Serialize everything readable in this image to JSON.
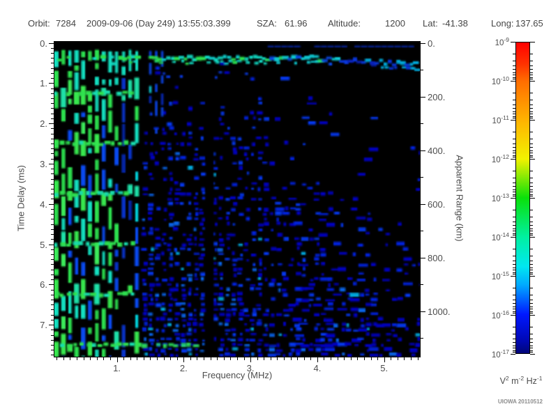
{
  "header": {
    "items": [
      {
        "key": "orbit",
        "label": "Orbit:",
        "value": "7284"
      },
      {
        "key": "datetime",
        "label": "",
        "value": "2009-09-06 (Day 249) 13:55:03.399"
      },
      {
        "key": "sza",
        "label": "SZA:",
        "value": "61.96"
      },
      {
        "key": "altitude",
        "label": "Altitude:",
        "value": "1200"
      },
      {
        "key": "lat",
        "label": "Lat:",
        "value": "-41.38"
      },
      {
        "key": "long",
        "label": "Long:",
        "value": "137.65"
      }
    ]
  },
  "chart_data": {
    "type": "heatmap",
    "description": "Radar sounder ionogram: echo spectral density versus sounding frequency and time delay, black background with blue-cyan-green echo traces",
    "x_axis": {
      "label": "Frequency (MHz)",
      "tick_labels": [
        "1.",
        "2.",
        "3.",
        "4.",
        "5."
      ],
      "tick_values": [
        1,
        2,
        3,
        4,
        5
      ],
      "minor_step_mhz": 0.1,
      "range": [
        0.07,
        5.53
      ]
    },
    "y_axis_left": {
      "label": "Time Delay (ms)",
      "tick_labels": [
        "0.",
        "1.",
        "2.",
        "3.",
        "4.",
        "5.",
        "6.",
        "7."
      ],
      "tick_values": [
        0,
        1,
        2,
        3,
        4,
        5,
        6,
        7
      ],
      "minor_divisions_per_major": 8,
      "range": [
        0,
        7.8
      ],
      "direction": "downward"
    },
    "y_axis_right": {
      "label": "Apparent Range (km)",
      "tick_labels": [
        "0.",
        "200.",
        "400.",
        "600.",
        "800.",
        "1000."
      ],
      "tick_values": [
        0,
        200,
        400,
        600,
        800,
        1000
      ],
      "minor_step_km": 100,
      "range": [
        0,
        1170
      ]
    },
    "colorbar": {
      "scale": "log",
      "tick_exponents": [
        -9,
        -10,
        -11,
        -12,
        -13,
        -14,
        -15,
        -16,
        -17
      ],
      "unit_parts": [
        [
          "V",
          "2"
        ],
        [
          "m",
          "-2"
        ],
        [
          "Hz",
          "-1"
        ]
      ],
      "gradient_stops": [
        {
          "pos": 0.0,
          "color": "#ff0000"
        },
        {
          "pos": 0.07,
          "color": "#ff3300"
        },
        {
          "pos": 0.125,
          "color": "#ff6e00"
        },
        {
          "pos": 0.25,
          "color": "#ffb300"
        },
        {
          "pos": 0.375,
          "color": "#f2f200"
        },
        {
          "pos": 0.5,
          "color": "#0ae00a"
        },
        {
          "pos": 0.625,
          "color": "#00f0a0"
        },
        {
          "pos": 0.72,
          "color": "#00e8f0"
        },
        {
          "pos": 0.78,
          "color": "#00aaff"
        },
        {
          "pos": 0.875,
          "color": "#0018ff"
        },
        {
          "pos": 0.96,
          "color": "#0008b4"
        },
        {
          "pos": 1.0,
          "color": "#000678"
        }
      ]
    },
    "features": [
      {
        "type": "noise_field",
        "f_range": [
          1.42,
          5.53
        ],
        "t_range": [
          0.5,
          7.8
        ]
      },
      {
        "type": "harmonic_stripes",
        "f_start": 0.1,
        "f_end": 1.45,
        "spacing_mhz": 0.1,
        "t_range": [
          0.17,
          7.8
        ]
      },
      {
        "type": "upper_stripes",
        "frequencies_mhz": [
          1.5,
          1.59,
          1.68
        ],
        "t_range": [
          0.2,
          2.35
        ]
      },
      {
        "type": "cyclotron_bands",
        "delays_ms": [
          1.25,
          2.5,
          3.75,
          5.0,
          6.25,
          7.5
        ],
        "f_max_mhz": 1.32,
        "last_band_f_max_mhz": 2.3
      },
      {
        "type": "surface_band",
        "t_center_ms": 0.38,
        "f_range": [
          0.08,
          5.5
        ]
      },
      {
        "type": "top_line",
        "t_ms": 0.07,
        "f_range": [
          3.3,
          5.45
        ]
      },
      {
        "type": "absorption_gap",
        "f_range": [
          2.335,
          2.45
        ],
        "t_range": [
          0.6,
          7.8
        ]
      }
    ]
  },
  "watermark": "UIOWA 20110512"
}
